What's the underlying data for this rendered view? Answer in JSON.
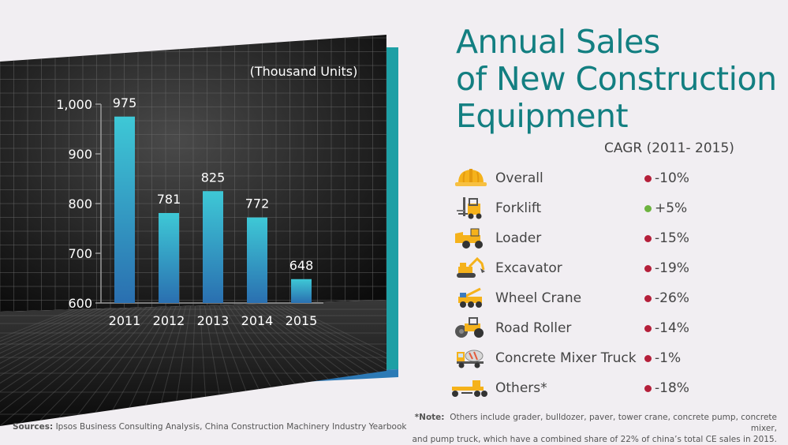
{
  "title": {
    "line1": "Annual Sales",
    "line2": "of New Construction",
    "line3": "Equipment"
  },
  "chart_data": {
    "type": "bar",
    "title": "Annual Sales of New Construction Equipment",
    "unit_label": "(Thousand Units)",
    "categories": [
      "2011",
      "2012",
      "2013",
      "2014",
      "2015"
    ],
    "values": [
      975,
      781,
      825,
      772,
      648
    ],
    "value_labels": [
      "975",
      "781",
      "825",
      "772",
      "648"
    ],
    "y_ticks": [
      "600",
      "700",
      "800",
      "900",
      "1,000"
    ],
    "y_tick_values": [
      600,
      700,
      800,
      900,
      1000
    ],
    "ylim": [
      600,
      1000
    ],
    "xlabel": "",
    "ylabel": "",
    "grid": true
  },
  "cagr": {
    "title": "CAGR (2011- 2015)",
    "items": [
      {
        "label": "Overall",
        "value": "-10%",
        "color": "#b51f3a",
        "icon": "hard-hat-icon"
      },
      {
        "label": "Forklift",
        "value": "+5%",
        "color": "#6db33f",
        "icon": "forklift-icon"
      },
      {
        "label": "Loader",
        "value": "-15%",
        "color": "#b51f3a",
        "icon": "loader-icon"
      },
      {
        "label": "Excavator",
        "value": "-19%",
        "color": "#b51f3a",
        "icon": "excavator-icon"
      },
      {
        "label": "Wheel Crane",
        "value": "-26%",
        "color": "#b51f3a",
        "icon": "wheel-crane-icon"
      },
      {
        "label": "Road Roller",
        "value": "-14%",
        "color": "#b51f3a",
        "icon": "road-roller-icon"
      },
      {
        "label": "Concrete Mixer Truck",
        "value": "-1%",
        "color": "#b51f3a",
        "icon": "concrete-mixer-icon"
      },
      {
        "label": "Others*",
        "value": "-18%",
        "color": "#b51f3a",
        "icon": "grader-icon"
      }
    ]
  },
  "note": {
    "label": "*Note:",
    "line1": "Others include grader, bulldozer, paver, tower crane, concrete pump, concrete mixer,",
    "line2": "and pump truck, which have a combined share of 22% of china’s total CE sales in 2015."
  },
  "sources": {
    "label": "Sources:",
    "text": "Ipsos Business Consulting Analysis, China Construction Machinery Industry Yearbook"
  },
  "colors": {
    "title": "#137f81",
    "teal": "#22b1b4",
    "bar_top": "#3ec8d6",
    "bar_bottom": "#2a6fb0",
    "negative": "#b51f3a",
    "positive": "#6db33f"
  }
}
